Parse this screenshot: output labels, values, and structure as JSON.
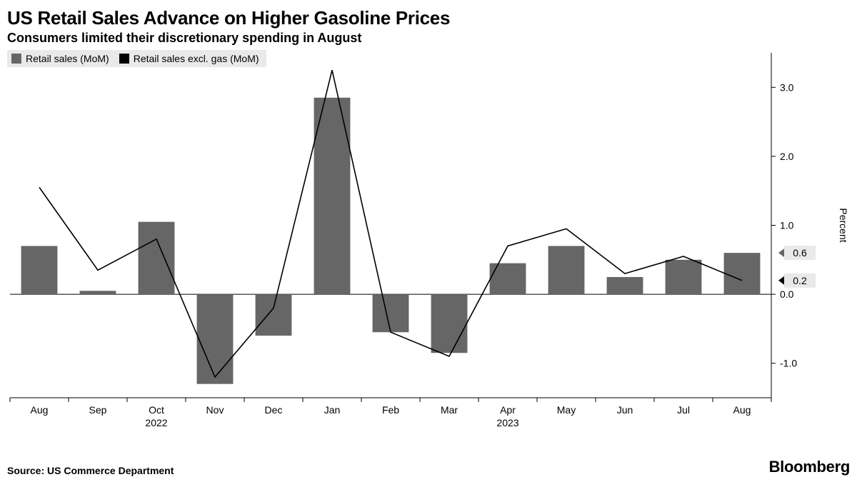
{
  "title": "US Retail Sales Advance on Higher Gasoline Prices",
  "subtitle": "Consumers limited their discretionary spending in August",
  "legend": {
    "items": [
      {
        "label": "Retail sales (MoM)",
        "color": "#666666"
      },
      {
        "label": "Retail sales excl. gas (MoM)",
        "color": "#000000"
      }
    ],
    "background": "#e9e9e9"
  },
  "chart": {
    "type": "bar+line",
    "months": [
      "Aug",
      "Sep",
      "Oct",
      "Nov",
      "Dec",
      "Jan",
      "Feb",
      "Mar",
      "Apr",
      "May",
      "Jun",
      "Jul",
      "Aug"
    ],
    "year_labels": [
      {
        "index": 2,
        "text": "2022"
      },
      {
        "index": 8,
        "text": "2023"
      }
    ],
    "bars": {
      "values": [
        0.7,
        0.05,
        1.05,
        -1.3,
        -0.6,
        2.85,
        -0.55,
        -0.85,
        0.45,
        0.7,
        0.25,
        0.5,
        0.6
      ],
      "color": "#666666",
      "width_frac": 0.62
    },
    "line": {
      "values": [
        1.55,
        0.35,
        0.8,
        -1.2,
        -0.2,
        3.25,
        -0.55,
        -0.9,
        0.7,
        0.95,
        0.3,
        0.55,
        0.2
      ],
      "color": "#000000",
      "stroke_width": 1.6
    },
    "y": {
      "min": -1.5,
      "max": 3.5,
      "ticks": [
        -1.0,
        0.0,
        1.0,
        2.0,
        3.0
      ],
      "tick_labels": [
        "-1.0",
        "0.0",
        "1.0",
        "2.0",
        "3.0"
      ],
      "axis_title": "Percent",
      "axis_title_rot": 90,
      "gridline_color": "#000000",
      "gridline_for": [
        0.0
      ]
    },
    "callouts": [
      {
        "value": 0.6,
        "text": "0.6",
        "bg": "#e9e9e9",
        "arrow": "#666666"
      },
      {
        "value": 0.2,
        "text": "0.2",
        "bg": "#e9e9e9",
        "arrow": "#000000"
      }
    ],
    "plot_bg": "#ffffff",
    "axis_color": "#000000",
    "tick_len": 6
  },
  "footer": {
    "source": "Source: US Commerce Department",
    "brand": "Bloomberg"
  }
}
